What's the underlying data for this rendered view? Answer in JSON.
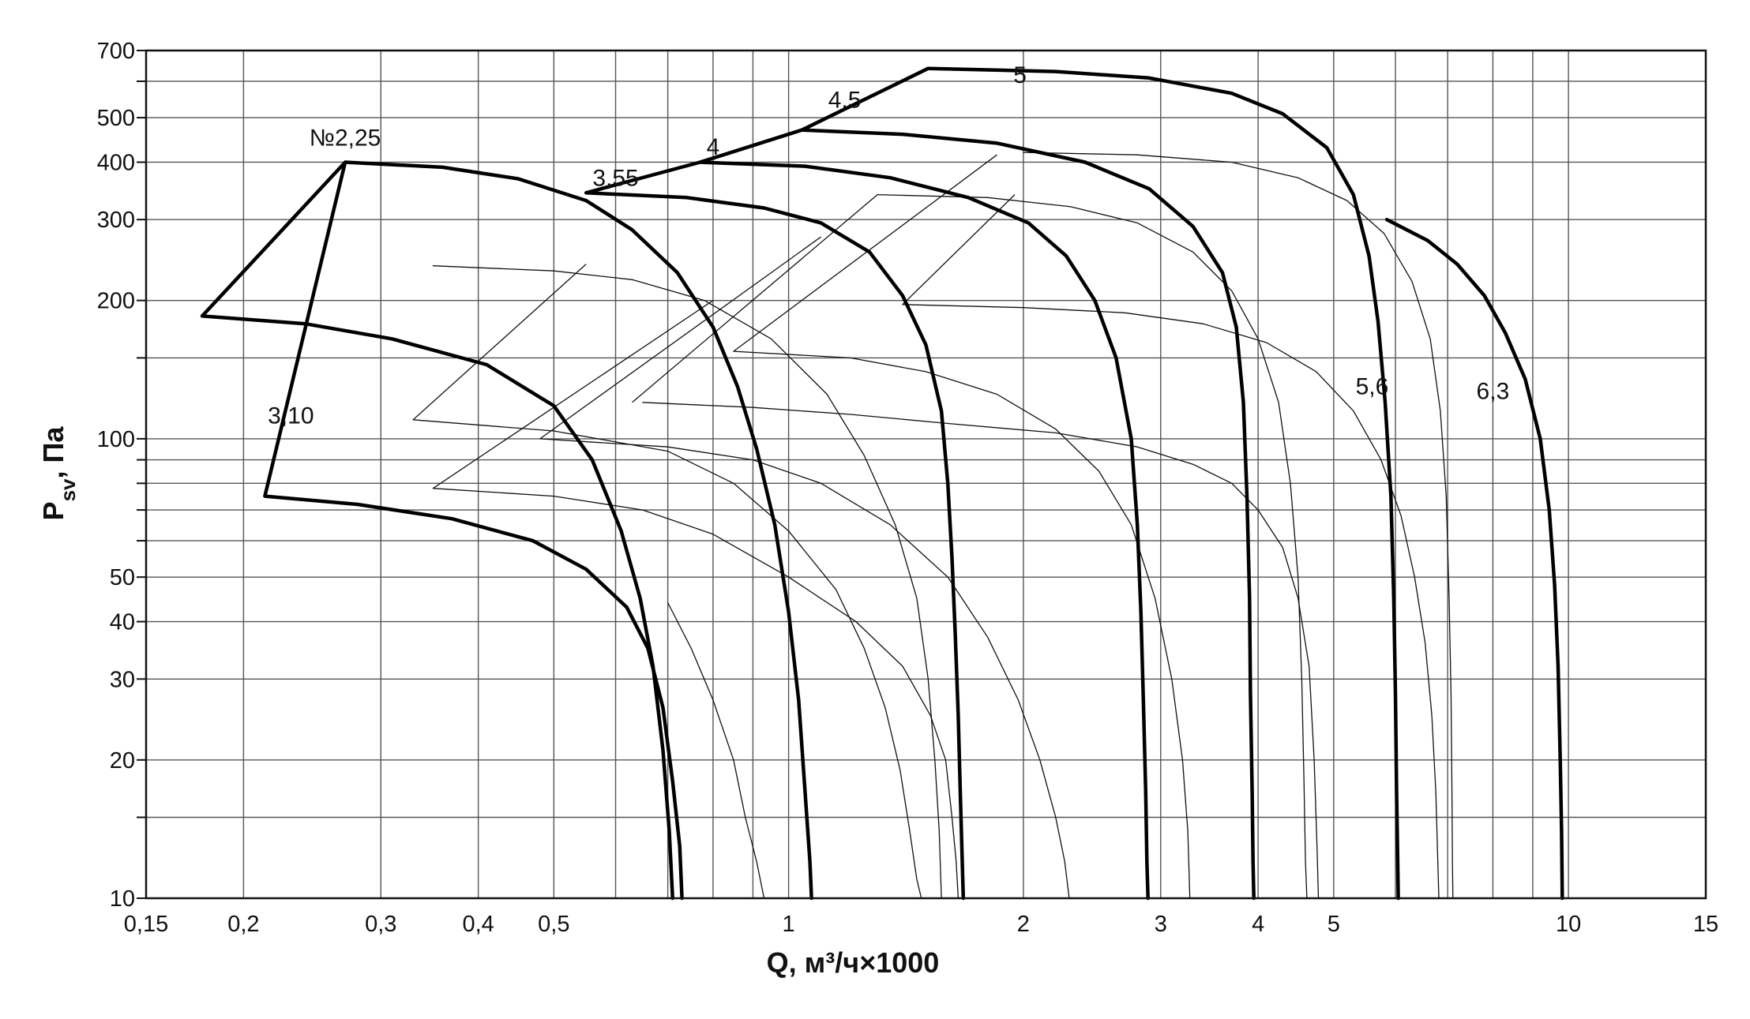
{
  "chart_data": {
    "type": "line",
    "title": "",
    "xlabel": "Q, м³/ч×1000",
    "ylabel_main": "P",
    "ylabel_sub": "sv",
    "ylabel_tail": ", Па",
    "x_scale": "log",
    "y_scale": "log",
    "xlim": [
      0.15,
      15
    ],
    "ylim": [
      10,
      700
    ],
    "grid": true,
    "x_major_ticks": [
      {
        "v": 0.15,
        "label": "0,15"
      },
      {
        "v": 0.2,
        "label": "0,2"
      },
      {
        "v": 0.3,
        "label": "0,3"
      },
      {
        "v": 0.4,
        "label": "0,4"
      },
      {
        "v": 0.5,
        "label": "0,5"
      },
      {
        "v": 1,
        "label": "1"
      },
      {
        "v": 2,
        "label": "2"
      },
      {
        "v": 3,
        "label": "3"
      },
      {
        "v": 4,
        "label": "4"
      },
      {
        "v": 5,
        "label": "5"
      },
      {
        "v": 10,
        "label": "10"
      },
      {
        "v": 15,
        "label": "15"
      }
    ],
    "x_minor_ticks": [
      0.6,
      0.7,
      0.8,
      0.9,
      6,
      7,
      8,
      9
    ],
    "y_major_ticks": [
      {
        "v": 10,
        "label": "10"
      },
      {
        "v": 20,
        "label": "20"
      },
      {
        "v": 30,
        "label": "30"
      },
      {
        "v": 40,
        "label": "40"
      },
      {
        "v": 50,
        "label": "50"
      },
      {
        "v": 100,
        "label": "100"
      },
      {
        "v": 200,
        "label": "200"
      },
      {
        "v": 300,
        "label": "300"
      },
      {
        "v": 400,
        "label": "400"
      },
      {
        "v": 500,
        "label": "500"
      },
      {
        "v": 700,
        "label": "700"
      }
    ],
    "y_minor_ticks": [
      15,
      60,
      70,
      80,
      90,
      150,
      600
    ],
    "series": [
      {
        "name": "3,10",
        "style": "bold",
        "label_at": [
          0.23,
          108
        ],
        "points": [
          [
            0.213,
            75
          ],
          [
            0.28,
            72
          ],
          [
            0.37,
            67
          ],
          [
            0.47,
            60
          ],
          [
            0.55,
            52
          ],
          [
            0.62,
            43
          ],
          [
            0.66,
            35
          ],
          [
            0.69,
            26
          ],
          [
            0.71,
            18
          ],
          [
            0.725,
            13
          ],
          [
            0.73,
            10
          ]
        ]
      },
      {
        "name": "№2,25",
        "style": "bold",
        "label_at": [
          0.27,
          435
        ],
        "points": [
          [
            0.177,
            185
          ],
          [
            0.24,
            178
          ],
          [
            0.31,
            165
          ],
          [
            0.41,
            145
          ],
          [
            0.5,
            118
          ],
          [
            0.56,
            90
          ],
          [
            0.61,
            63
          ],
          [
            0.645,
            45
          ],
          [
            0.67,
            32
          ],
          [
            0.69,
            21
          ],
          [
            0.703,
            14
          ],
          [
            0.71,
            10
          ]
        ]
      },
      {
        "name": "3,55",
        "style": "bold",
        "label_at": [
          0.6,
          355
        ],
        "points": [
          [
            0.27,
            400
          ],
          [
            0.36,
            390
          ],
          [
            0.45,
            368
          ],
          [
            0.55,
            330
          ],
          [
            0.63,
            285
          ],
          [
            0.72,
            230
          ],
          [
            0.8,
            175
          ],
          [
            0.86,
            130
          ],
          [
            0.91,
            95
          ],
          [
            0.96,
            65
          ],
          [
            1.0,
            42
          ],
          [
            1.03,
            27
          ],
          [
            1.05,
            17
          ],
          [
            1.065,
            12
          ],
          [
            1.07,
            10
          ]
        ]
      },
      {
        "name": "4",
        "style": "bold",
        "label_at": [
          0.8,
          415
        ],
        "points": [
          [
            0.55,
            343
          ],
          [
            0.74,
            335
          ],
          [
            0.93,
            318
          ],
          [
            1.1,
            295
          ],
          [
            1.27,
            255
          ],
          [
            1.4,
            205
          ],
          [
            1.5,
            160
          ],
          [
            1.57,
            115
          ],
          [
            1.6,
            80
          ],
          [
            1.62,
            55
          ],
          [
            1.635,
            38
          ],
          [
            1.65,
            25
          ],
          [
            1.66,
            17
          ],
          [
            1.67,
            12
          ],
          [
            1.675,
            10
          ]
        ]
      },
      {
        "name": "4,5",
        "style": "bold",
        "label_at": [
          1.18,
          525
        ],
        "points": [
          [
            0.77,
            400
          ],
          [
            1.05,
            392
          ],
          [
            1.35,
            370
          ],
          [
            1.7,
            335
          ],
          [
            2.03,
            295
          ],
          [
            2.27,
            250
          ],
          [
            2.47,
            200
          ],
          [
            2.63,
            150
          ],
          [
            2.75,
            100
          ],
          [
            2.8,
            65
          ],
          [
            2.83,
            42
          ],
          [
            2.85,
            27
          ],
          [
            2.87,
            17
          ],
          [
            2.88,
            12
          ],
          [
            2.89,
            10
          ]
        ]
      },
      {
        "name": "5",
        "style": "bold",
        "label_at": [
          1.98,
          595
        ],
        "points": [
          [
            1.04,
            470
          ],
          [
            1.4,
            460
          ],
          [
            1.85,
            440
          ],
          [
            2.4,
            400
          ],
          [
            2.9,
            350
          ],
          [
            3.3,
            290
          ],
          [
            3.6,
            230
          ],
          [
            3.75,
            175
          ],
          [
            3.83,
            120
          ],
          [
            3.87,
            75
          ],
          [
            3.9,
            45
          ],
          [
            3.91,
            28
          ],
          [
            3.93,
            17
          ],
          [
            3.94,
            12
          ],
          [
            3.95,
            10
          ]
        ]
      },
      {
        "name": "5,6",
        "style": "bold",
        "label_at": [
          5.6,
          125
        ],
        "points": [
          [
            1.51,
            640
          ],
          [
            2.2,
            630
          ],
          [
            2.9,
            610
          ],
          [
            3.7,
            565
          ],
          [
            4.3,
            510
          ],
          [
            4.9,
            430
          ],
          [
            5.3,
            340
          ],
          [
            5.55,
            250
          ],
          [
            5.7,
            180
          ],
          [
            5.82,
            120
          ],
          [
            5.92,
            75
          ],
          [
            5.97,
            45
          ],
          [
            6.0,
            28
          ],
          [
            6.02,
            17
          ],
          [
            6.04,
            12
          ],
          [
            6.05,
            10
          ]
        ]
      },
      {
        "name": "6,3",
        "style": "bold",
        "label_at": [
          8.0,
          122
        ],
        "points": [
          [
            5.85,
            300
          ],
          [
            6.6,
            270
          ],
          [
            7.2,
            240
          ],
          [
            7.8,
            205
          ],
          [
            8.3,
            170
          ],
          [
            8.8,
            135
          ],
          [
            9.2,
            100
          ],
          [
            9.45,
            70
          ],
          [
            9.6,
            48
          ],
          [
            9.7,
            32
          ],
          [
            9.76,
            20
          ],
          [
            9.8,
            14
          ],
          [
            9.82,
            10
          ]
        ]
      },
      {
        "name": "",
        "style": "thin",
        "points": [
          [
            0.7,
            44
          ],
          [
            0.75,
            35
          ],
          [
            0.8,
            27
          ],
          [
            0.85,
            20
          ],
          [
            0.88,
            15
          ],
          [
            0.91,
            12
          ],
          [
            0.93,
            10
          ]
        ]
      },
      {
        "name": "",
        "style": "thin",
        "points": [
          [
            0.33,
            110
          ],
          [
            0.5,
            104
          ],
          [
            0.7,
            94
          ],
          [
            0.85,
            80
          ],
          [
            1.0,
            63
          ],
          [
            1.15,
            47
          ],
          [
            1.25,
            35
          ],
          [
            1.33,
            26
          ],
          [
            1.39,
            19
          ],
          [
            1.43,
            14
          ],
          [
            1.46,
            11
          ],
          [
            1.48,
            10
          ]
        ]
      },
      {
        "name": "",
        "style": "thin",
        "points": [
          [
            0.35,
            238
          ],
          [
            0.5,
            232
          ],
          [
            0.63,
            222
          ],
          [
            0.78,
            200
          ],
          [
            0.95,
            165
          ],
          [
            1.12,
            125
          ],
          [
            1.25,
            92
          ],
          [
            1.37,
            65
          ],
          [
            1.46,
            45
          ],
          [
            1.51,
            30
          ],
          [
            1.54,
            20
          ],
          [
            1.56,
            14
          ],
          [
            1.57,
            10
          ]
        ]
      },
      {
        "name": "",
        "style": "thin",
        "points": [
          [
            0.35,
            78
          ],
          [
            0.5,
            75
          ],
          [
            0.65,
            70
          ],
          [
            0.8,
            62
          ],
          [
            1.0,
            50
          ],
          [
            1.22,
            40
          ],
          [
            1.4,
            32
          ],
          [
            1.52,
            25
          ],
          [
            1.59,
            20
          ],
          [
            1.62,
            15
          ],
          [
            1.64,
            12
          ],
          [
            1.65,
            10
          ]
        ]
      },
      {
        "name": "",
        "style": "thin",
        "points": [
          [
            0.48,
            100
          ],
          [
            0.7,
            96
          ],
          [
            0.9,
            90
          ],
          [
            1.1,
            80
          ],
          [
            1.35,
            65
          ],
          [
            1.6,
            50
          ],
          [
            1.8,
            37
          ],
          [
            1.97,
            27
          ],
          [
            2.1,
            20
          ],
          [
            2.2,
            15
          ],
          [
            2.26,
            12
          ],
          [
            2.29,
            10
          ]
        ]
      },
      {
        "name": "",
        "style": "thin",
        "points": [
          [
            0.85,
            155
          ],
          [
            1.2,
            150
          ],
          [
            1.5,
            140
          ],
          [
            1.85,
            125
          ],
          [
            2.2,
            105
          ],
          [
            2.5,
            85
          ],
          [
            2.75,
            65
          ],
          [
            2.95,
            45
          ],
          [
            3.1,
            30
          ],
          [
            3.2,
            20
          ],
          [
            3.25,
            14
          ],
          [
            3.27,
            10
          ]
        ]
      },
      {
        "name": "",
        "style": "thin",
        "points": [
          [
            1.3,
            340
          ],
          [
            1.8,
            335
          ],
          [
            2.3,
            320
          ],
          [
            2.8,
            295
          ],
          [
            3.3,
            255
          ],
          [
            3.7,
            210
          ],
          [
            4.0,
            165
          ],
          [
            4.25,
            120
          ],
          [
            4.4,
            80
          ],
          [
            4.5,
            50
          ],
          [
            4.55,
            30
          ],
          [
            4.58,
            18
          ],
          [
            4.6,
            12
          ],
          [
            4.62,
            10
          ]
        ]
      },
      {
        "name": "",
        "style": "thin",
        "points": [
          [
            0.65,
            120
          ],
          [
            0.9,
            117
          ],
          [
            1.2,
            113
          ],
          [
            1.6,
            108
          ],
          [
            2.2,
            103
          ],
          [
            2.8,
            96
          ],
          [
            3.3,
            88
          ],
          [
            3.7,
            80
          ],
          [
            4.0,
            70
          ],
          [
            4.3,
            58
          ],
          [
            4.5,
            45
          ],
          [
            4.65,
            32
          ],
          [
            4.72,
            20
          ],
          [
            4.76,
            13
          ],
          [
            4.78,
            10
          ]
        ]
      },
      {
        "name": "",
        "style": "thin",
        "points": [
          [
            2.0,
            420
          ],
          [
            2.8,
            415
          ],
          [
            3.7,
            400
          ],
          [
            4.5,
            370
          ],
          [
            5.2,
            330
          ],
          [
            5.8,
            280
          ],
          [
            6.3,
            220
          ],
          [
            6.65,
            165
          ],
          [
            6.85,
            115
          ],
          [
            6.97,
            75
          ],
          [
            7.03,
            45
          ],
          [
            7.07,
            28
          ],
          [
            7.09,
            17
          ],
          [
            7.1,
            12
          ],
          [
            7.11,
            10
          ]
        ]
      },
      {
        "name": "",
        "style": "thin",
        "points": [
          [
            1.4,
            196
          ],
          [
            2.0,
            193
          ],
          [
            2.7,
            188
          ],
          [
            3.4,
            178
          ],
          [
            4.1,
            162
          ],
          [
            4.75,
            140
          ],
          [
            5.3,
            115
          ],
          [
            5.75,
            90
          ],
          [
            6.1,
            68
          ],
          [
            6.35,
            50
          ],
          [
            6.55,
            36
          ],
          [
            6.68,
            25
          ],
          [
            6.76,
            17
          ],
          [
            6.8,
            12
          ],
          [
            6.82,
            10
          ]
        ]
      }
    ],
    "thick_connectors": [
      [
        [
          0.213,
          75
        ],
        [
          0.27,
          400
        ]
      ],
      [
        [
          0.177,
          185
        ],
        [
          0.27,
          400
        ]
      ],
      [
        [
          0.55,
          343
        ],
        [
          0.77,
          400
        ],
        [
          1.04,
          470
        ],
        [
          1.51,
          640
        ]
      ]
    ],
    "thin_connectors": [
      [
        [
          0.33,
          110
        ],
        [
          0.55,
          240
        ]
      ],
      [
        [
          0.35,
          78
        ],
        [
          0.8,
          200
        ]
      ],
      [
        [
          0.48,
          100
        ],
        [
          1.1,
          275
        ]
      ],
      [
        [
          0.63,
          120
        ],
        [
          1.3,
          340
        ]
      ],
      [
        [
          0.85,
          155
        ],
        [
          1.85,
          415
        ]
      ],
      [
        [
          1.4,
          196
        ],
        [
          1.95,
          340
        ]
      ]
    ]
  }
}
